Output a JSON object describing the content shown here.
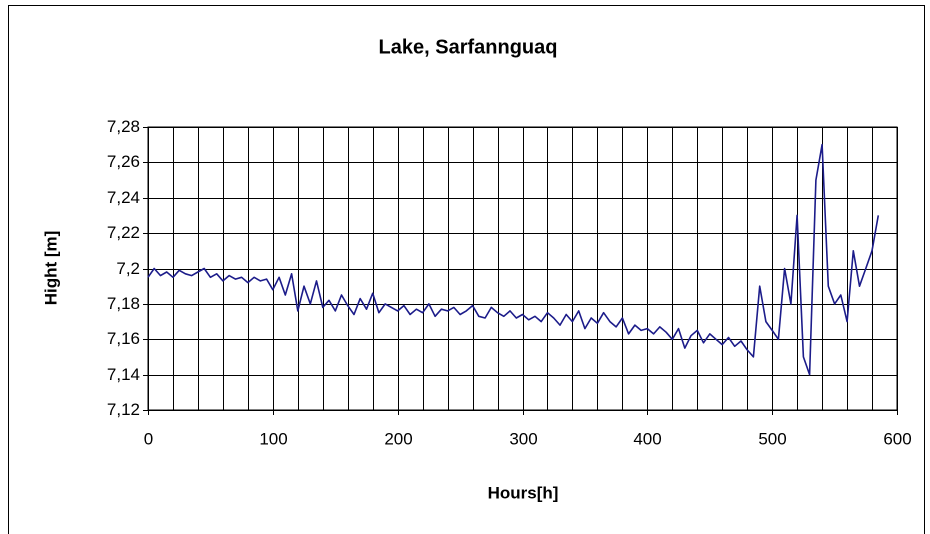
{
  "chart_data": {
    "type": "line",
    "title": "Lake, Sarfannguaq",
    "xlabel": "Hours[h]",
    "ylabel": "Hight [m]",
    "x": [
      0,
      5,
      10,
      15,
      20,
      25,
      30,
      35,
      40,
      45,
      50,
      55,
      60,
      65,
      70,
      75,
      80,
      85,
      90,
      95,
      100,
      105,
      110,
      115,
      120,
      125,
      130,
      135,
      140,
      145,
      150,
      155,
      160,
      165,
      170,
      175,
      180,
      185,
      190,
      195,
      200,
      205,
      210,
      215,
      220,
      225,
      230,
      235,
      240,
      245,
      250,
      255,
      260,
      265,
      270,
      275,
      280,
      285,
      290,
      295,
      300,
      305,
      310,
      315,
      320,
      325,
      330,
      335,
      340,
      345,
      350,
      355,
      360,
      365,
      370,
      375,
      380,
      385,
      390,
      395,
      400,
      405,
      410,
      415,
      420,
      425,
      430,
      435,
      440,
      445,
      450,
      455,
      460,
      465,
      470,
      475,
      480,
      485,
      490,
      495,
      500,
      505,
      510,
      515,
      520,
      525,
      530,
      535,
      540,
      545,
      550,
      555,
      560,
      565,
      570,
      575,
      580,
      585
    ],
    "series": [
      {
        "name": "Hight",
        "color": "#1c1c8a",
        "values": [
          7.195,
          7.2,
          7.196,
          7.198,
          7.195,
          7.199,
          7.197,
          7.196,
          7.198,
          7.2,
          7.195,
          7.197,
          7.193,
          7.196,
          7.194,
          7.195,
          7.192,
          7.195,
          7.193,
          7.194,
          7.188,
          7.195,
          7.185,
          7.197,
          7.176,
          7.19,
          7.18,
          7.193,
          7.178,
          7.182,
          7.176,
          7.185,
          7.179,
          7.174,
          7.183,
          7.177,
          7.186,
          7.175,
          7.18,
          7.178,
          7.176,
          7.179,
          7.174,
          7.177,
          7.175,
          7.18,
          7.173,
          7.177,
          7.176,
          7.178,
          7.174,
          7.176,
          7.179,
          7.173,
          7.172,
          7.178,
          7.175,
          7.173,
          7.176,
          7.172,
          7.174,
          7.171,
          7.173,
          7.17,
          7.175,
          7.172,
          7.168,
          7.174,
          7.17,
          7.176,
          7.166,
          7.172,
          7.169,
          7.175,
          7.17,
          7.167,
          7.172,
          7.163,
          7.168,
          7.165,
          7.166,
          7.163,
          7.167,
          7.164,
          7.16,
          7.166,
          7.155,
          7.162,
          7.165,
          7.158,
          7.163,
          7.16,
          7.157,
          7.161,
          7.156,
          7.159,
          7.154,
          7.15,
          7.19,
          7.17,
          7.165,
          7.16,
          7.2,
          7.18,
          7.23,
          7.15,
          7.14,
          7.25,
          7.27,
          7.19,
          7.18,
          7.185,
          7.17,
          7.21,
          7.19,
          7.2,
          7.21,
          7.23
        ]
      }
    ],
    "xlim": [
      0,
      600
    ],
    "xticks": [
      0,
      100,
      200,
      300,
      400,
      500,
      600
    ],
    "ylim": [
      7.12,
      7.28
    ],
    "yticks": [
      {
        "value": 7.12,
        "label": "7,12"
      },
      {
        "value": 7.14,
        "label": "7,14"
      },
      {
        "value": 7.16,
        "label": "7,16"
      },
      {
        "value": 7.18,
        "label": "7,18"
      },
      {
        "value": 7.2,
        "label": "7,2"
      },
      {
        "value": 7.22,
        "label": "7,22"
      },
      {
        "value": 7.24,
        "label": "7,24"
      },
      {
        "value": 7.26,
        "label": "7,26"
      },
      {
        "value": 7.28,
        "label": "7,28"
      }
    ],
    "grid": true
  }
}
